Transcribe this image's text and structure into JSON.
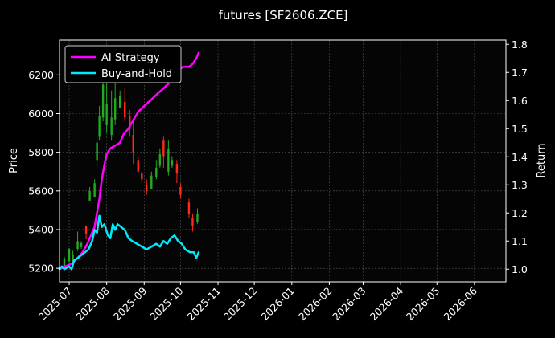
{
  "chart_data": {
    "type": "line",
    "title": "futures [SF2606.ZCE]",
    "ylabel_left": "Price",
    "ylabel_right": "Return",
    "xlim": [
      "2025-06-23",
      "2026-06-27"
    ],
    "ylim_left": [
      5130,
      6380
    ],
    "ylim_right": [
      0.955,
      1.815
    ],
    "x_ticks": [
      "2025-07",
      "2025-08",
      "2025-09",
      "2025-10",
      "2025-11",
      "2025-12",
      "2026-01",
      "2026-02",
      "2026-03",
      "2026-04",
      "2026-05",
      "2026-06"
    ],
    "y_ticks_left": [
      5200,
      5400,
      5600,
      5800,
      6000,
      6200
    ],
    "y_ticks_right": [
      1.0,
      1.1,
      1.2,
      1.3,
      1.4,
      1.5,
      1.6,
      1.7,
      1.8
    ],
    "grid": true,
    "legend_placement": "top-left",
    "colors": {
      "ai_strategy": "#ff00ff",
      "buy_and_hold": "#00eaff",
      "candle_up": "#ff2a1a",
      "candle_down": "#22aa22",
      "grid": "#555555"
    },
    "series": [
      {
        "name": "AI Strategy",
        "axis": "right",
        "points": [
          [
            "2025-06-23",
            1.0
          ],
          [
            "2025-06-28",
            1.01
          ],
          [
            "2025-07-03",
            1.02
          ],
          [
            "2025-07-08",
            1.04
          ],
          [
            "2025-07-12",
            1.06
          ],
          [
            "2025-07-16",
            1.09
          ],
          [
            "2025-07-19",
            1.12
          ],
          [
            "2025-07-22",
            1.15
          ],
          [
            "2025-07-24",
            1.2
          ],
          [
            "2025-07-26",
            1.25
          ],
          [
            "2025-07-28",
            1.32
          ],
          [
            "2025-07-30",
            1.37
          ],
          [
            "2025-08-01",
            1.41
          ],
          [
            "2025-08-04",
            1.43
          ],
          [
            "2025-08-08",
            1.44
          ],
          [
            "2025-08-12",
            1.45
          ],
          [
            "2025-08-15",
            1.48
          ],
          [
            "2025-08-19",
            1.5
          ],
          [
            "2025-08-23",
            1.53
          ],
          [
            "2025-08-27",
            1.56
          ],
          [
            "2025-09-01",
            1.58
          ],
          [
            "2025-09-06",
            1.6
          ],
          [
            "2025-09-11",
            1.62
          ],
          [
            "2025-09-16",
            1.64
          ],
          [
            "2025-09-21",
            1.66
          ],
          [
            "2025-09-26",
            1.69
          ],
          [
            "2025-09-30",
            1.71
          ],
          [
            "2025-10-03",
            1.72
          ],
          [
            "2025-10-08",
            1.72
          ],
          [
            "2025-10-11",
            1.73
          ],
          [
            "2025-10-14",
            1.75
          ],
          [
            "2025-10-16",
            1.77
          ]
        ]
      },
      {
        "name": "Buy-and-Hold",
        "axis": "right",
        "points": [
          [
            "2025-06-23",
            1.0
          ],
          [
            "2025-06-25",
            1.01
          ],
          [
            "2025-06-27",
            1.0
          ],
          [
            "2025-07-01",
            1.01
          ],
          [
            "2025-07-03",
            1.0
          ],
          [
            "2025-07-05",
            1.03
          ],
          [
            "2025-07-08",
            1.04
          ],
          [
            "2025-07-11",
            1.05
          ],
          [
            "2025-07-14",
            1.06
          ],
          [
            "2025-07-17",
            1.07
          ],
          [
            "2025-07-20",
            1.1
          ],
          [
            "2025-07-22",
            1.14
          ],
          [
            "2025-07-24",
            1.13
          ],
          [
            "2025-07-26",
            1.19
          ],
          [
            "2025-07-28",
            1.15
          ],
          [
            "2025-07-30",
            1.16
          ],
          [
            "2025-08-02",
            1.12
          ],
          [
            "2025-08-04",
            1.11
          ],
          [
            "2025-08-06",
            1.16
          ],
          [
            "2025-08-08",
            1.14
          ],
          [
            "2025-08-10",
            1.16
          ],
          [
            "2025-08-13",
            1.15
          ],
          [
            "2025-08-16",
            1.14
          ],
          [
            "2025-08-19",
            1.11
          ],
          [
            "2025-08-22",
            1.1
          ],
          [
            "2025-08-26",
            1.09
          ],
          [
            "2025-08-30",
            1.08
          ],
          [
            "2025-09-03",
            1.07
          ],
          [
            "2025-09-07",
            1.08
          ],
          [
            "2025-09-11",
            1.09
          ],
          [
            "2025-09-14",
            1.08
          ],
          [
            "2025-09-17",
            1.1
          ],
          [
            "2025-09-20",
            1.09
          ],
          [
            "2025-09-23",
            1.11
          ],
          [
            "2025-09-26",
            1.12
          ],
          [
            "2025-09-29",
            1.1
          ],
          [
            "2025-10-02",
            1.09
          ],
          [
            "2025-10-05",
            1.07
          ],
          [
            "2025-10-09",
            1.06
          ],
          [
            "2025-10-12",
            1.06
          ],
          [
            "2025-10-14",
            1.04
          ],
          [
            "2025-10-16",
            1.06
          ]
        ]
      }
    ],
    "candles": [
      [
        "2025-06-23",
        5195,
        5215,
        5205,
        5200
      ],
      [
        "2025-06-27",
        5230,
        5260,
        5250,
        5210
      ],
      [
        "2025-07-01",
        5280,
        5305,
        5300,
        5235
      ],
      [
        "2025-07-04",
        5245,
        5290,
        5270,
        5230
      ],
      [
        "2025-07-08",
        5290,
        5390,
        5340,
        5300
      ],
      [
        "2025-07-11",
        5300,
        5340,
        5330,
        5310
      ],
      [
        "2025-07-15",
        5350,
        5410,
        5380,
        5420
      ],
      [
        "2025-07-18",
        5560,
        5620,
        5600,
        5550
      ],
      [
        "2025-07-22",
        5590,
        5660,
        5640,
        5570
      ],
      [
        "2025-07-24",
        5720,
        5890,
        5850,
        5760
      ],
      [
        "2025-07-26",
        5860,
        6040,
        5990,
        5880
      ],
      [
        "2025-07-29",
        5960,
        6200,
        6150,
        5980
      ],
      [
        "2025-08-01",
        5900,
        6170,
        6050,
        5940
      ],
      [
        "2025-08-05",
        5860,
        6120,
        5980,
        5890
      ],
      [
        "2025-08-08",
        5940,
        6160,
        6080,
        5970
      ],
      [
        "2025-08-12",
        6040,
        6120,
        6090,
        6030
      ],
      [
        "2025-08-16",
        5960,
        6130,
        5980,
        6060
      ],
      [
        "2025-08-20",
        5880,
        6020,
        5920,
        5990
      ],
      [
        "2025-08-23",
        5740,
        5960,
        5800,
        5890
      ],
      [
        "2025-08-27",
        5690,
        5780,
        5700,
        5760
      ],
      [
        "2025-08-30",
        5640,
        5700,
        5660,
        5690
      ],
      [
        "2025-09-03",
        5580,
        5660,
        5600,
        5630
      ],
      [
        "2025-09-07",
        5620,
        5700,
        5680,
        5610
      ],
      [
        "2025-09-11",
        5660,
        5760,
        5720,
        5670
      ],
      [
        "2025-09-14",
        5720,
        5820,
        5790,
        5730
      ],
      [
        "2025-09-17",
        5720,
        5880,
        5780,
        5860
      ],
      [
        "2025-09-21",
        5680,
        5860,
        5820,
        5700
      ],
      [
        "2025-09-24",
        5720,
        5780,
        5760,
        5730
      ],
      [
        "2025-09-28",
        5640,
        5760,
        5690,
        5740
      ],
      [
        "2025-10-01",
        5560,
        5640,
        5580,
        5620
      ],
      [
        "2025-10-08",
        5460,
        5560,
        5480,
        5540
      ],
      [
        "2025-10-11",
        5390,
        5480,
        5420,
        5460
      ],
      [
        "2025-10-15",
        5430,
        5510,
        5480,
        5440
      ]
    ]
  }
}
